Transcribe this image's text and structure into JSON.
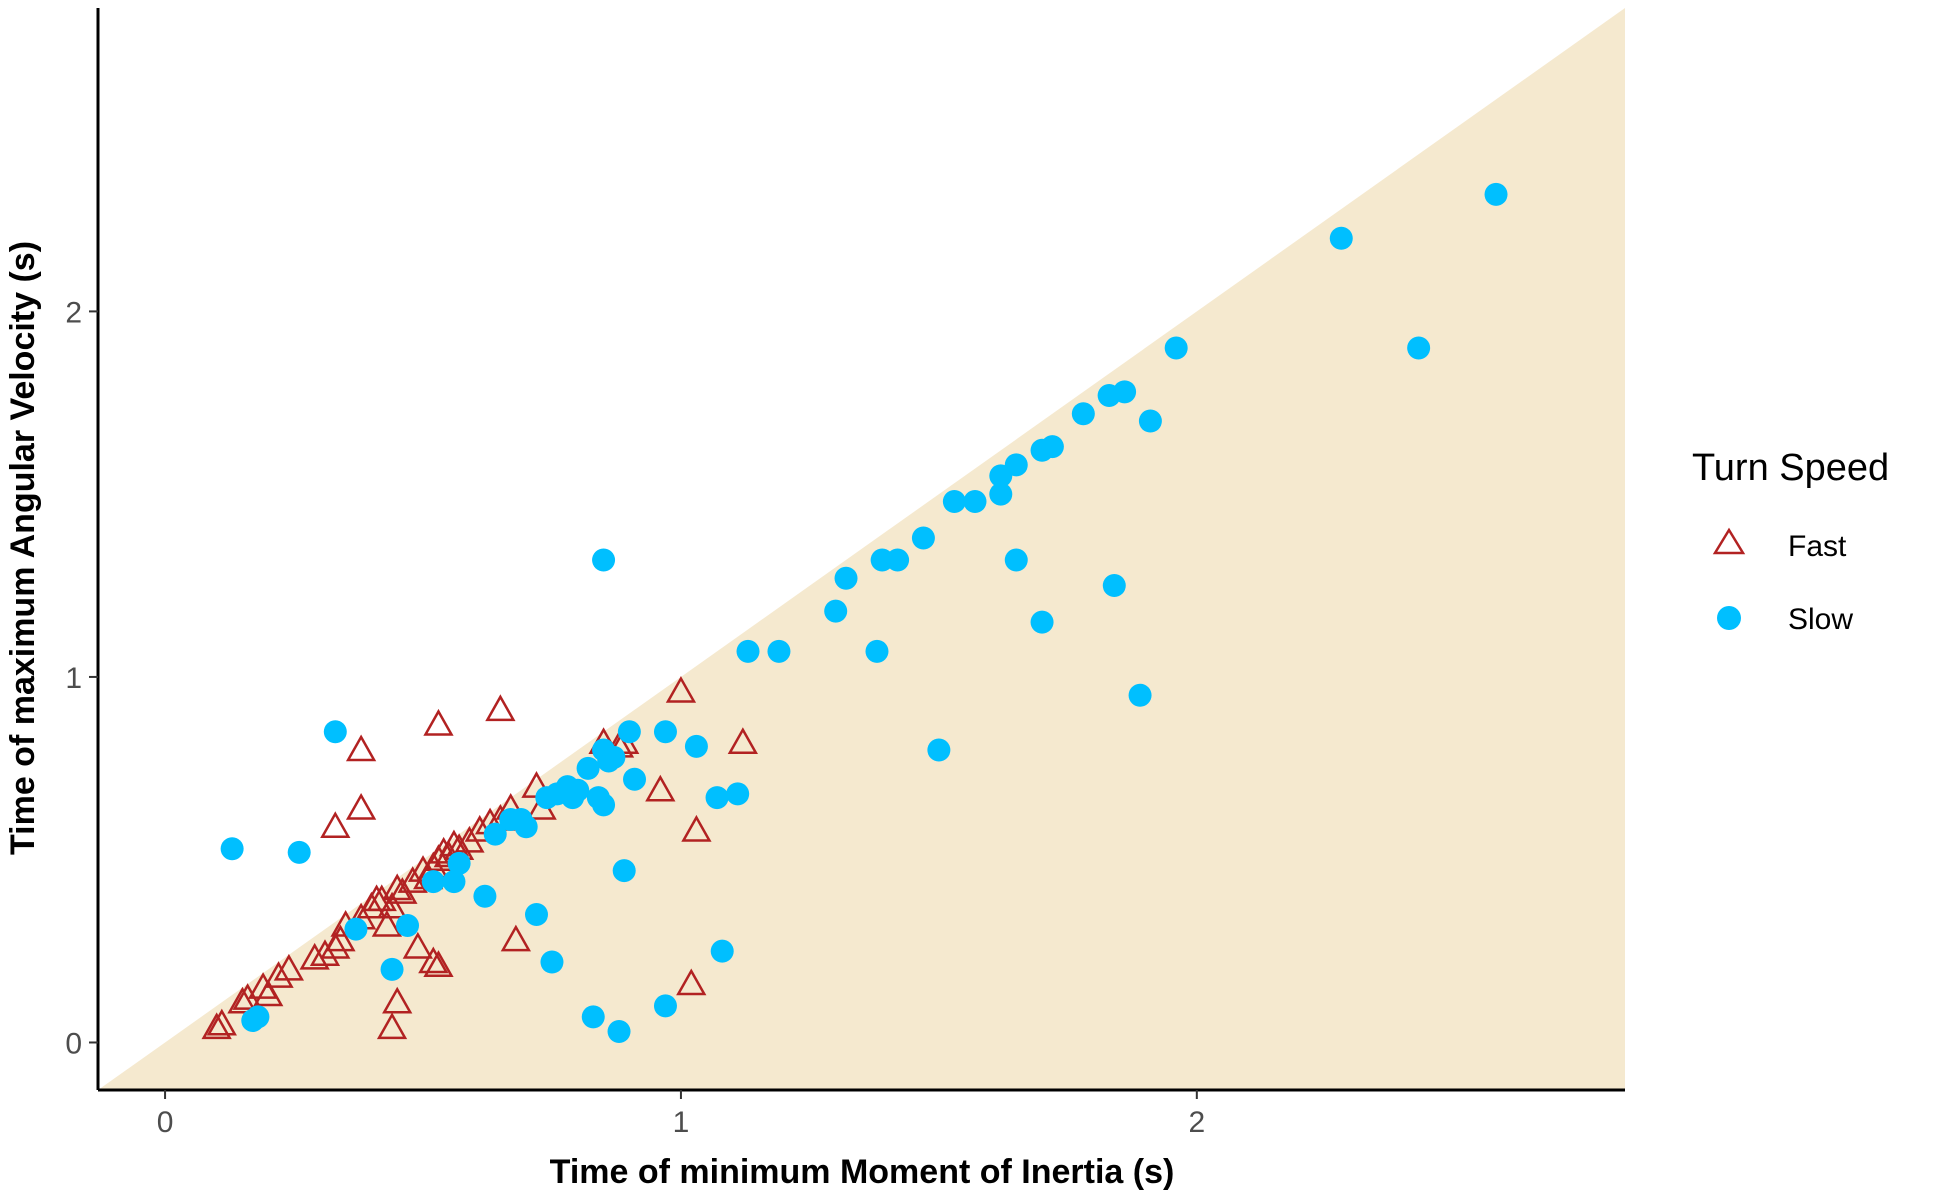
{
  "chart_data": {
    "type": "scatter",
    "xlabel": "Time of minimum Moment of Inertia (s)",
    "ylabel": "Time of maximum Angular Velocity (s)",
    "xlim": [
      -0.13,
      2.83
    ],
    "ylim": [
      -0.13,
      2.83
    ],
    "xticks": [
      0,
      1,
      2
    ],
    "yticks": [
      0,
      1,
      2
    ],
    "grid": false,
    "shaded_region": {
      "description_color": "#f5e9cf",
      "rule": "y <= x"
    },
    "legend": {
      "title": "Turn Speed",
      "placement": "right"
    },
    "series": [
      {
        "name": "Fast",
        "marker": "open-triangle",
        "color": "#b22222",
        "points": [
          [
            0.1,
            0.04
          ],
          [
            0.11,
            0.05
          ],
          [
            0.15,
            0.11
          ],
          [
            0.16,
            0.12
          ],
          [
            0.19,
            0.15
          ],
          [
            0.2,
            0.13
          ],
          [
            0.22,
            0.18
          ],
          [
            0.24,
            0.2
          ],
          [
            0.29,
            0.23
          ],
          [
            0.31,
            0.24
          ],
          [
            0.33,
            0.26
          ],
          [
            0.34,
            0.28
          ],
          [
            0.35,
            0.32
          ],
          [
            0.38,
            0.34
          ],
          [
            0.4,
            0.37
          ],
          [
            0.41,
            0.39
          ],
          [
            0.42,
            0.39
          ],
          [
            0.43,
            0.32
          ],
          [
            0.44,
            0.37
          ],
          [
            0.45,
            0.42
          ],
          [
            0.46,
            0.41
          ],
          [
            0.48,
            0.44
          ],
          [
            0.49,
            0.26
          ],
          [
            0.5,
            0.47
          ],
          [
            0.51,
            0.45
          ],
          [
            0.52,
            0.48
          ],
          [
            0.53,
            0.5
          ],
          [
            0.54,
            0.52
          ],
          [
            0.55,
            0.51
          ],
          [
            0.56,
            0.54
          ],
          [
            0.57,
            0.53
          ],
          [
            0.59,
            0.55
          ],
          [
            0.61,
            0.58
          ],
          [
            0.63,
            0.6
          ],
          [
            0.65,
            0.61
          ],
          [
            0.67,
            0.64
          ],
          [
            0.72,
            0.7
          ],
          [
            0.73,
            0.64
          ],
          [
            0.33,
            0.59
          ],
          [
            0.38,
            0.64
          ],
          [
            0.38,
            0.8
          ],
          [
            0.53,
            0.87
          ],
          [
            0.65,
            0.91
          ],
          [
            0.52,
            0.22
          ],
          [
            0.53,
            0.21
          ],
          [
            0.45,
            0.11
          ],
          [
            0.44,
            0.04
          ],
          [
            0.68,
            0.28
          ],
          [
            0.85,
            0.82
          ],
          [
            0.88,
            0.81
          ],
          [
            0.89,
            0.82
          ],
          [
            0.96,
            0.69
          ],
          [
            1.0,
            0.96
          ],
          [
            1.03,
            0.58
          ],
          [
            1.02,
            0.16
          ],
          [
            1.12,
            0.82
          ]
        ]
      },
      {
        "name": "Slow",
        "marker": "filled-circle",
        "color": "#00bfff",
        "points": [
          [
            0.13,
            0.53
          ],
          [
            0.26,
            0.52
          ],
          [
            0.33,
            0.85
          ],
          [
            0.17,
            0.06
          ],
          [
            0.18,
            0.07
          ],
          [
            0.37,
            0.31
          ],
          [
            0.44,
            0.2
          ],
          [
            0.47,
            0.32
          ],
          [
            0.52,
            0.44
          ],
          [
            0.56,
            0.44
          ],
          [
            0.57,
            0.49
          ],
          [
            0.62,
            0.4
          ],
          [
            0.64,
            0.57
          ],
          [
            0.67,
            0.61
          ],
          [
            0.69,
            0.61
          ],
          [
            0.7,
            0.59
          ],
          [
            0.72,
            0.35
          ],
          [
            0.74,
            0.67
          ],
          [
            0.75,
            0.22
          ],
          [
            0.76,
            0.68
          ],
          [
            0.78,
            0.7
          ],
          [
            0.79,
            0.67
          ],
          [
            0.8,
            0.69
          ],
          [
            0.82,
            0.75
          ],
          [
            0.84,
            0.67
          ],
          [
            0.85,
            0.65
          ],
          [
            0.85,
            0.8
          ],
          [
            0.86,
            0.77
          ],
          [
            0.87,
            0.78
          ],
          [
            0.88,
            0.03
          ],
          [
            0.89,
            0.47
          ],
          [
            0.9,
            0.85
          ],
          [
            0.91,
            0.72
          ],
          [
            0.83,
            0.07
          ],
          [
            0.97,
            0.85
          ],
          [
            0.97,
            0.1
          ],
          [
            1.03,
            0.81
          ],
          [
            1.07,
            0.67
          ],
          [
            1.08,
            0.25
          ],
          [
            1.11,
            0.68
          ],
          [
            1.13,
            1.07
          ],
          [
            1.19,
            1.07
          ],
          [
            0.85,
            1.32
          ],
          [
            1.3,
            1.18
          ],
          [
            1.32,
            1.27
          ],
          [
            1.38,
            1.07
          ],
          [
            1.39,
            1.32
          ],
          [
            1.42,
            1.32
          ],
          [
            1.47,
            1.38
          ],
          [
            1.5,
            0.8
          ],
          [
            1.53,
            1.48
          ],
          [
            1.57,
            1.48
          ],
          [
            1.62,
            1.5
          ],
          [
            1.62,
            1.55
          ],
          [
            1.65,
            1.58
          ],
          [
            1.65,
            1.32
          ],
          [
            1.7,
            1.15
          ],
          [
            1.7,
            1.62
          ],
          [
            1.72,
            1.63
          ],
          [
            1.78,
            1.72
          ],
          [
            1.83,
            1.77
          ],
          [
            1.84,
            1.25
          ],
          [
            1.86,
            1.78
          ],
          [
            1.89,
            0.95
          ],
          [
            1.91,
            1.7
          ],
          [
            1.96,
            1.9
          ],
          [
            2.28,
            2.2
          ],
          [
            2.43,
            1.9
          ],
          [
            2.58,
            2.32
          ]
        ]
      }
    ]
  }
}
